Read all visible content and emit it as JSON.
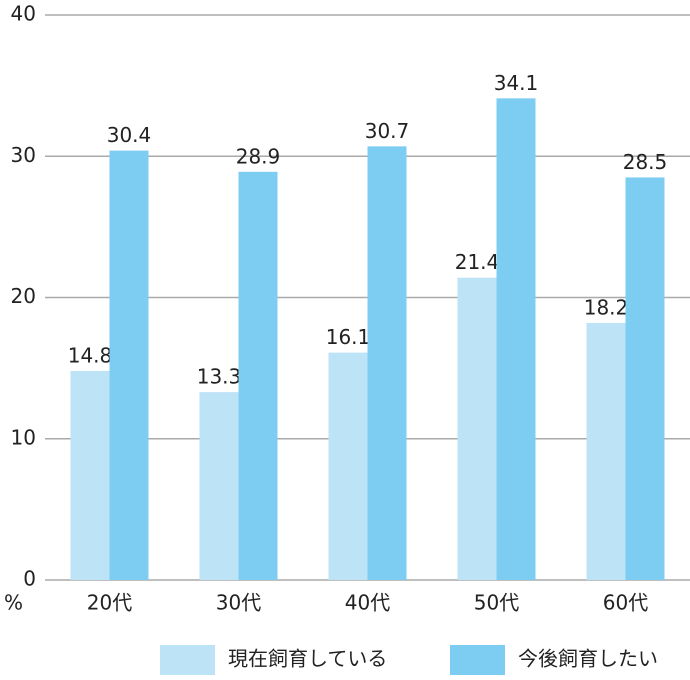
{
  "chart_data": {
    "type": "bar",
    "y_label": "%",
    "categories": [
      "20代",
      "30代",
      "40代",
      "50代",
      "60代"
    ],
    "series": [
      {
        "name": "現在飼育している",
        "color": "#bde3f7",
        "values": [
          14.8,
          13.3,
          16.1,
          21.4,
          18.2
        ]
      },
      {
        "name": "今後飼育したい",
        "color": "#7dcdf2",
        "values": [
          30.4,
          28.9,
          30.7,
          34.1,
          28.5
        ]
      }
    ],
    "ylim": [
      0,
      40
    ],
    "yticks": [
      0,
      10,
      20,
      30,
      40
    ],
    "grid": true
  }
}
